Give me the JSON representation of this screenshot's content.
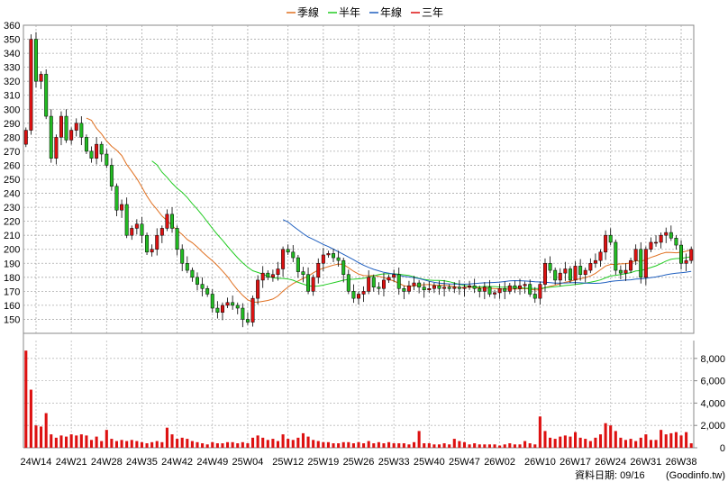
{
  "chart_data": {
    "type": "candlestick",
    "legend": {
      "placement": "top-center",
      "items": [
        {
          "name": "季線",
          "color": "#e07020"
        },
        {
          "name": "半年",
          "color": "#22cc22"
        },
        {
          "name": "年線",
          "color": "#1f5fbf"
        },
        {
          "name": "三年",
          "color": "#dd1111"
        }
      ]
    },
    "price_axis": {
      "min": 140,
      "max": 360,
      "step": 10,
      "labeled_min": 150,
      "labeled_max": 360
    },
    "volume_axis": {
      "min": 0,
      "max": 9600,
      "ticks": [
        0,
        2000,
        4000,
        6000,
        8000
      ],
      "tick_labels": [
        "0",
        "2,000",
        "4,000",
        "6,000",
        "8,000"
      ]
    },
    "grid": true,
    "up_color": "#dd1111",
    "down_color": "#22bb22",
    "x_tick_labels": [
      "24W14",
      "24W21",
      "24W28",
      "24W35",
      "24W42",
      "24W49",
      "25W04",
      "25W12",
      "25W19",
      "25W26",
      "25W33",
      "25W40",
      "25W47",
      "26W02",
      "26W10",
      "26W17",
      "26W24",
      "26W31",
      "26W38"
    ],
    "x_tick_index": [
      2,
      9,
      16,
      23,
      30,
      37,
      44,
      52,
      59,
      66,
      73,
      80,
      87,
      94,
      102,
      109,
      116,
      123,
      130
    ],
    "weeks": 133,
    "close": [
      285,
      350,
      320,
      325,
      295,
      265,
      280,
      295,
      278,
      285,
      290,
      280,
      270,
      265,
      275,
      268,
      260,
      245,
      228,
      232,
      210,
      215,
      218,
      210,
      198,
      200,
      210,
      215,
      225,
      215,
      200,
      190,
      185,
      180,
      175,
      172,
      168,
      158,
      155,
      160,
      162,
      160,
      158,
      150,
      148,
      165,
      178,
      183,
      180,
      182,
      186,
      200,
      198,
      194,
      184,
      182,
      170,
      180,
      190,
      196,
      197,
      194,
      192,
      182,
      170,
      165,
      168,
      170,
      180,
      173,
      172,
      178,
      180,
      182,
      172,
      170,
      174,
      176,
      173,
      171,
      172,
      174,
      172,
      173,
      172,
      173,
      172,
      173,
      174,
      172,
      170,
      173,
      168,
      169,
      172,
      170,
      174,
      172,
      174,
      175,
      168,
      165,
      175,
      190,
      185,
      178,
      183,
      186,
      178,
      188,
      182,
      185,
      190,
      192,
      198,
      210,
      205,
      185,
      183,
      185,
      192,
      200,
      180,
      200,
      205,
      205,
      210,
      212,
      208,
      203,
      190,
      192,
      200
    ],
    "volume": [
      8700,
      5200,
      2000,
      1900,
      3100,
      1200,
      900,
      1100,
      1000,
      1200,
      1100,
      1200,
      1100,
      700,
      1000,
      600,
      1600,
      800,
      600,
      700,
      600,
      700,
      600,
      500,
      400,
      500,
      600,
      500,
      1800,
      1200,
      800,
      900,
      800,
      600,
      500,
      400,
      300,
      500,
      400,
      400,
      500,
      500,
      400,
      500,
      400,
      900,
      1100,
      900,
      700,
      800,
      600,
      1200,
      800,
      700,
      900,
      1300,
      1000,
      700,
      600,
      500,
      500,
      400,
      400,
      500,
      500,
      400,
      500,
      400,
      600,
      400,
      500,
      400,
      500,
      400,
      400,
      400,
      300,
      500,
      1500,
      400,
      400,
      300,
      300,
      400,
      300,
      800,
      600,
      500,
      300,
      400,
      300,
      300,
      300,
      300,
      200,
      300,
      400,
      300,
      300,
      600,
      400,
      300,
      2800,
      1500,
      900,
      800,
      1000,
      1100,
      1000,
      1400,
      900,
      800,
      600,
      900,
      1200,
      2200,
      2000,
      1500,
      900,
      700,
      800,
      600,
      900,
      1200,
      700,
      700,
      1600,
      1200,
      1300,
      1400,
      1100,
      1400,
      400
    ]
  },
  "footer": {
    "data_date": "資料日期: 09/16",
    "source": "(Goodinfo.tw)"
  }
}
